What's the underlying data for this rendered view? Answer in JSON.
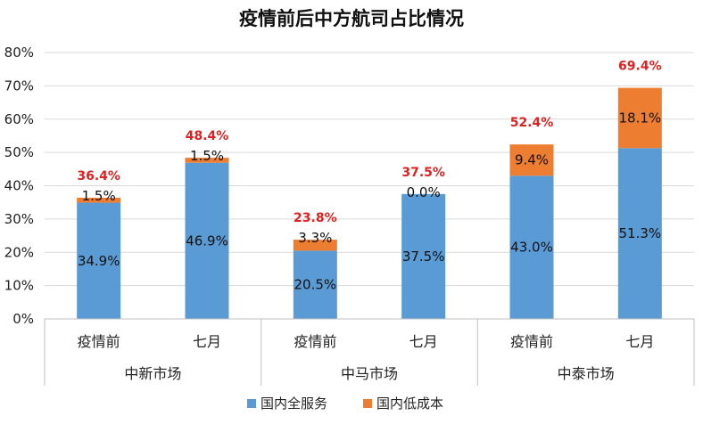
{
  "chart_data": {
    "type": "bar",
    "stacked": true,
    "title": "疫情前后中方航司占比情况",
    "categories": [
      "疫情前",
      "七月",
      "疫情前",
      "七月",
      "疫情前",
      "七月"
    ],
    "groups": [
      {
        "label": "中新市场",
        "span": [
          0,
          1
        ]
      },
      {
        "label": "中马市场",
        "span": [
          2,
          3
        ]
      },
      {
        "label": "中泰市场",
        "span": [
          4,
          5
        ]
      }
    ],
    "series": [
      {
        "name": "国内全服务",
        "color": "#5b9bd5",
        "values": [
          34.9,
          46.9,
          20.5,
          37.5,
          43.0,
          51.3
        ],
        "labels": [
          "34.9%",
          "46.9%",
          "20.5%",
          "37.5%",
          "43.0%",
          "51.3%"
        ]
      },
      {
        "name": "国内低成本",
        "color": "#ed7d31",
        "values": [
          1.5,
          1.5,
          3.3,
          0.0,
          9.4,
          18.1
        ],
        "labels": [
          "1.5%",
          "1.5%",
          "3.3%",
          "0.0%",
          "9.4%",
          "18.1%"
        ]
      }
    ],
    "totals": [
      36.4,
      48.4,
      23.8,
      37.5,
      52.4,
      69.4
    ],
    "total_labels": [
      "36.4%",
      "48.4%",
      "23.8%",
      "37.5%",
      "52.4%",
      "69.4%"
    ],
    "total_color": "#e02020",
    "ylim": [
      0,
      80
    ],
    "yticks": [
      "0%",
      "10%",
      "20%",
      "30%",
      "40%",
      "50%",
      "60%",
      "70%",
      "80%"
    ],
    "ytick_values": [
      0,
      10,
      20,
      30,
      40,
      50,
      60,
      70,
      80
    ],
    "grid": true,
    "legend_position": "bottom"
  }
}
